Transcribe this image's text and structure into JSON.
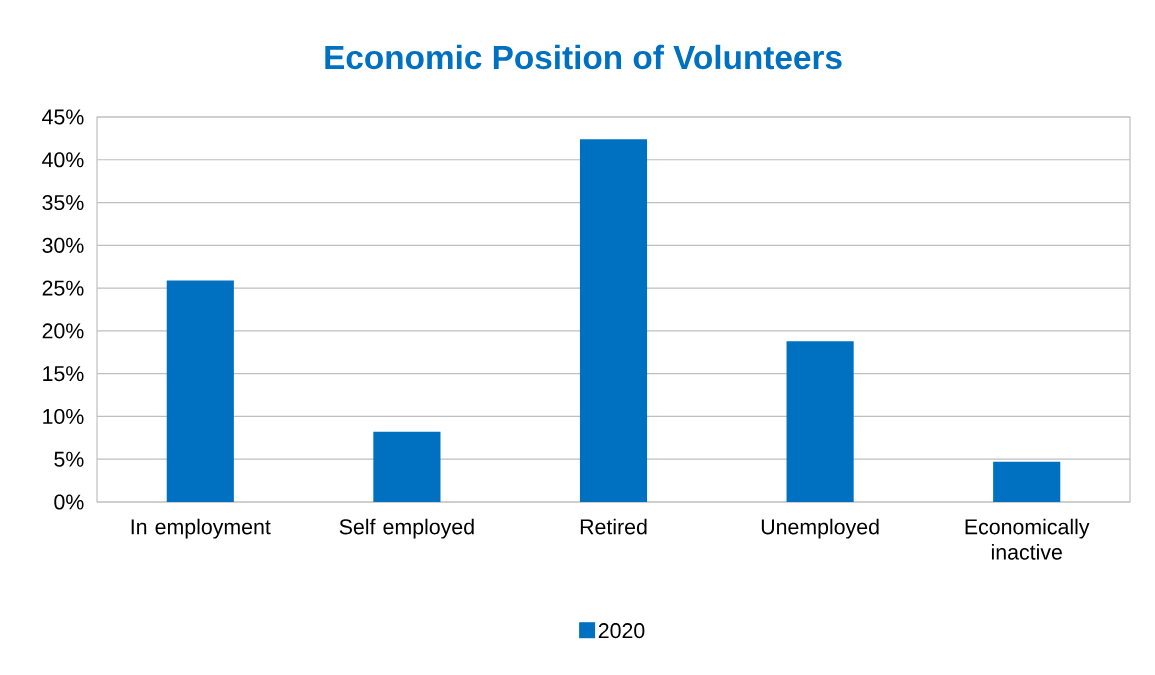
{
  "chart_data": {
    "type": "bar",
    "title": "Economic Position of Volunteers",
    "categories": [
      "In employment",
      "Self employed",
      "Retired",
      "Unemployed",
      "Economically inactive"
    ],
    "series": [
      {
        "name": "2020",
        "color": "#0070c0",
        "values": [
          25.9,
          8.2,
          42.4,
          18.8,
          4.7
        ]
      }
    ],
    "ylim": [
      0,
      45
    ],
    "yticks": [
      {
        "value": 0,
        "label": "0%"
      },
      {
        "value": 5,
        "label": "5%"
      },
      {
        "value": 10,
        "label": "10%"
      },
      {
        "value": 15,
        "label": "15%"
      },
      {
        "value": 20,
        "label": "20%"
      },
      {
        "value": 25,
        "label": "25%"
      },
      {
        "value": 30,
        "label": "30%"
      },
      {
        "value": 35,
        "label": "35%"
      },
      {
        "value": 40,
        "label": "40%"
      },
      {
        "value": 45,
        "label": "45%"
      }
    ],
    "grid": "y",
    "legend": "bottom"
  }
}
